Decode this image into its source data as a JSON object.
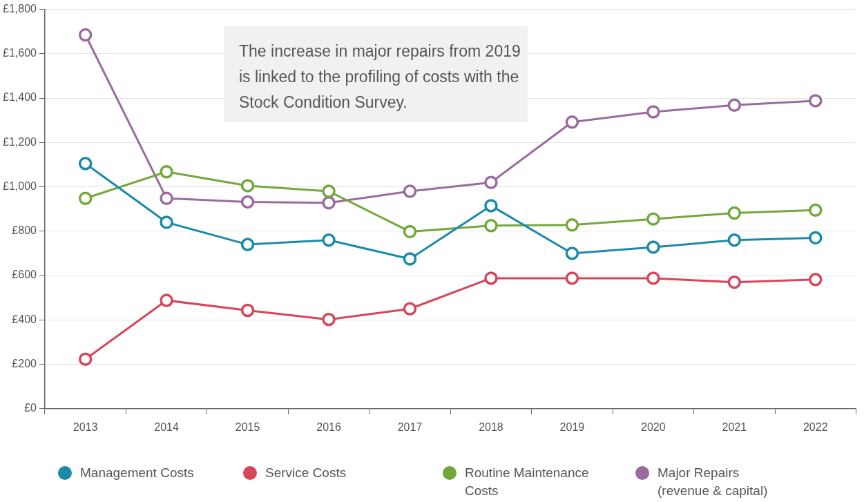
{
  "chart_data": {
    "type": "line",
    "categories": [
      "2013",
      "2014",
      "2015",
      "2016",
      "2017",
      "2018",
      "2019",
      "2020",
      "2021",
      "2022"
    ],
    "series": [
      {
        "name": "Management Costs",
        "color": "#1a8aa8",
        "values": [
          1105,
          840,
          740,
          760,
          675,
          915,
          700,
          728,
          760,
          770
        ]
      },
      {
        "name": "Service Costs",
        "color": "#d6455a",
        "values": [
          223,
          488,
          443,
          402,
          450,
          588,
          588,
          588,
          570,
          582
        ]
      },
      {
        "name": "Routine Maintenance Costs",
        "color": "#72a83a",
        "values": [
          948,
          1068,
          1005,
          980,
          798,
          825,
          828,
          855,
          882,
          895
        ]
      },
      {
        "name": "Major Repairs (revenue & capital)",
        "color": "#9b6a9e",
        "values": [
          1685,
          948,
          932,
          928,
          980,
          1020,
          1292,
          1338,
          1368,
          1388
        ]
      }
    ],
    "ylim": [
      0,
      1800
    ],
    "yticks": [
      {
        "value": 0,
        "label": "£0"
      },
      {
        "value": 200,
        "label": "£200"
      },
      {
        "value": 400,
        "label": "£400"
      },
      {
        "value": 600,
        "label": "£600"
      },
      {
        "value": 800,
        "label": "£800"
      },
      {
        "value": 1000,
        "label": "£1,000"
      },
      {
        "value": 1200,
        "label": "£1,200"
      },
      {
        "value": 1400,
        "label": "£1,400"
      },
      {
        "value": 1600,
        "label": "£1,600"
      },
      {
        "value": 1800,
        "label": "£1,800"
      }
    ],
    "grid": "y",
    "legend": "bottom",
    "marker": "circle",
    "line_style": "solid",
    "annotations": [
      "The increase in major repairs from 2019 is linked to the profiling of costs with the Stock Condition Survey."
    ]
  }
}
